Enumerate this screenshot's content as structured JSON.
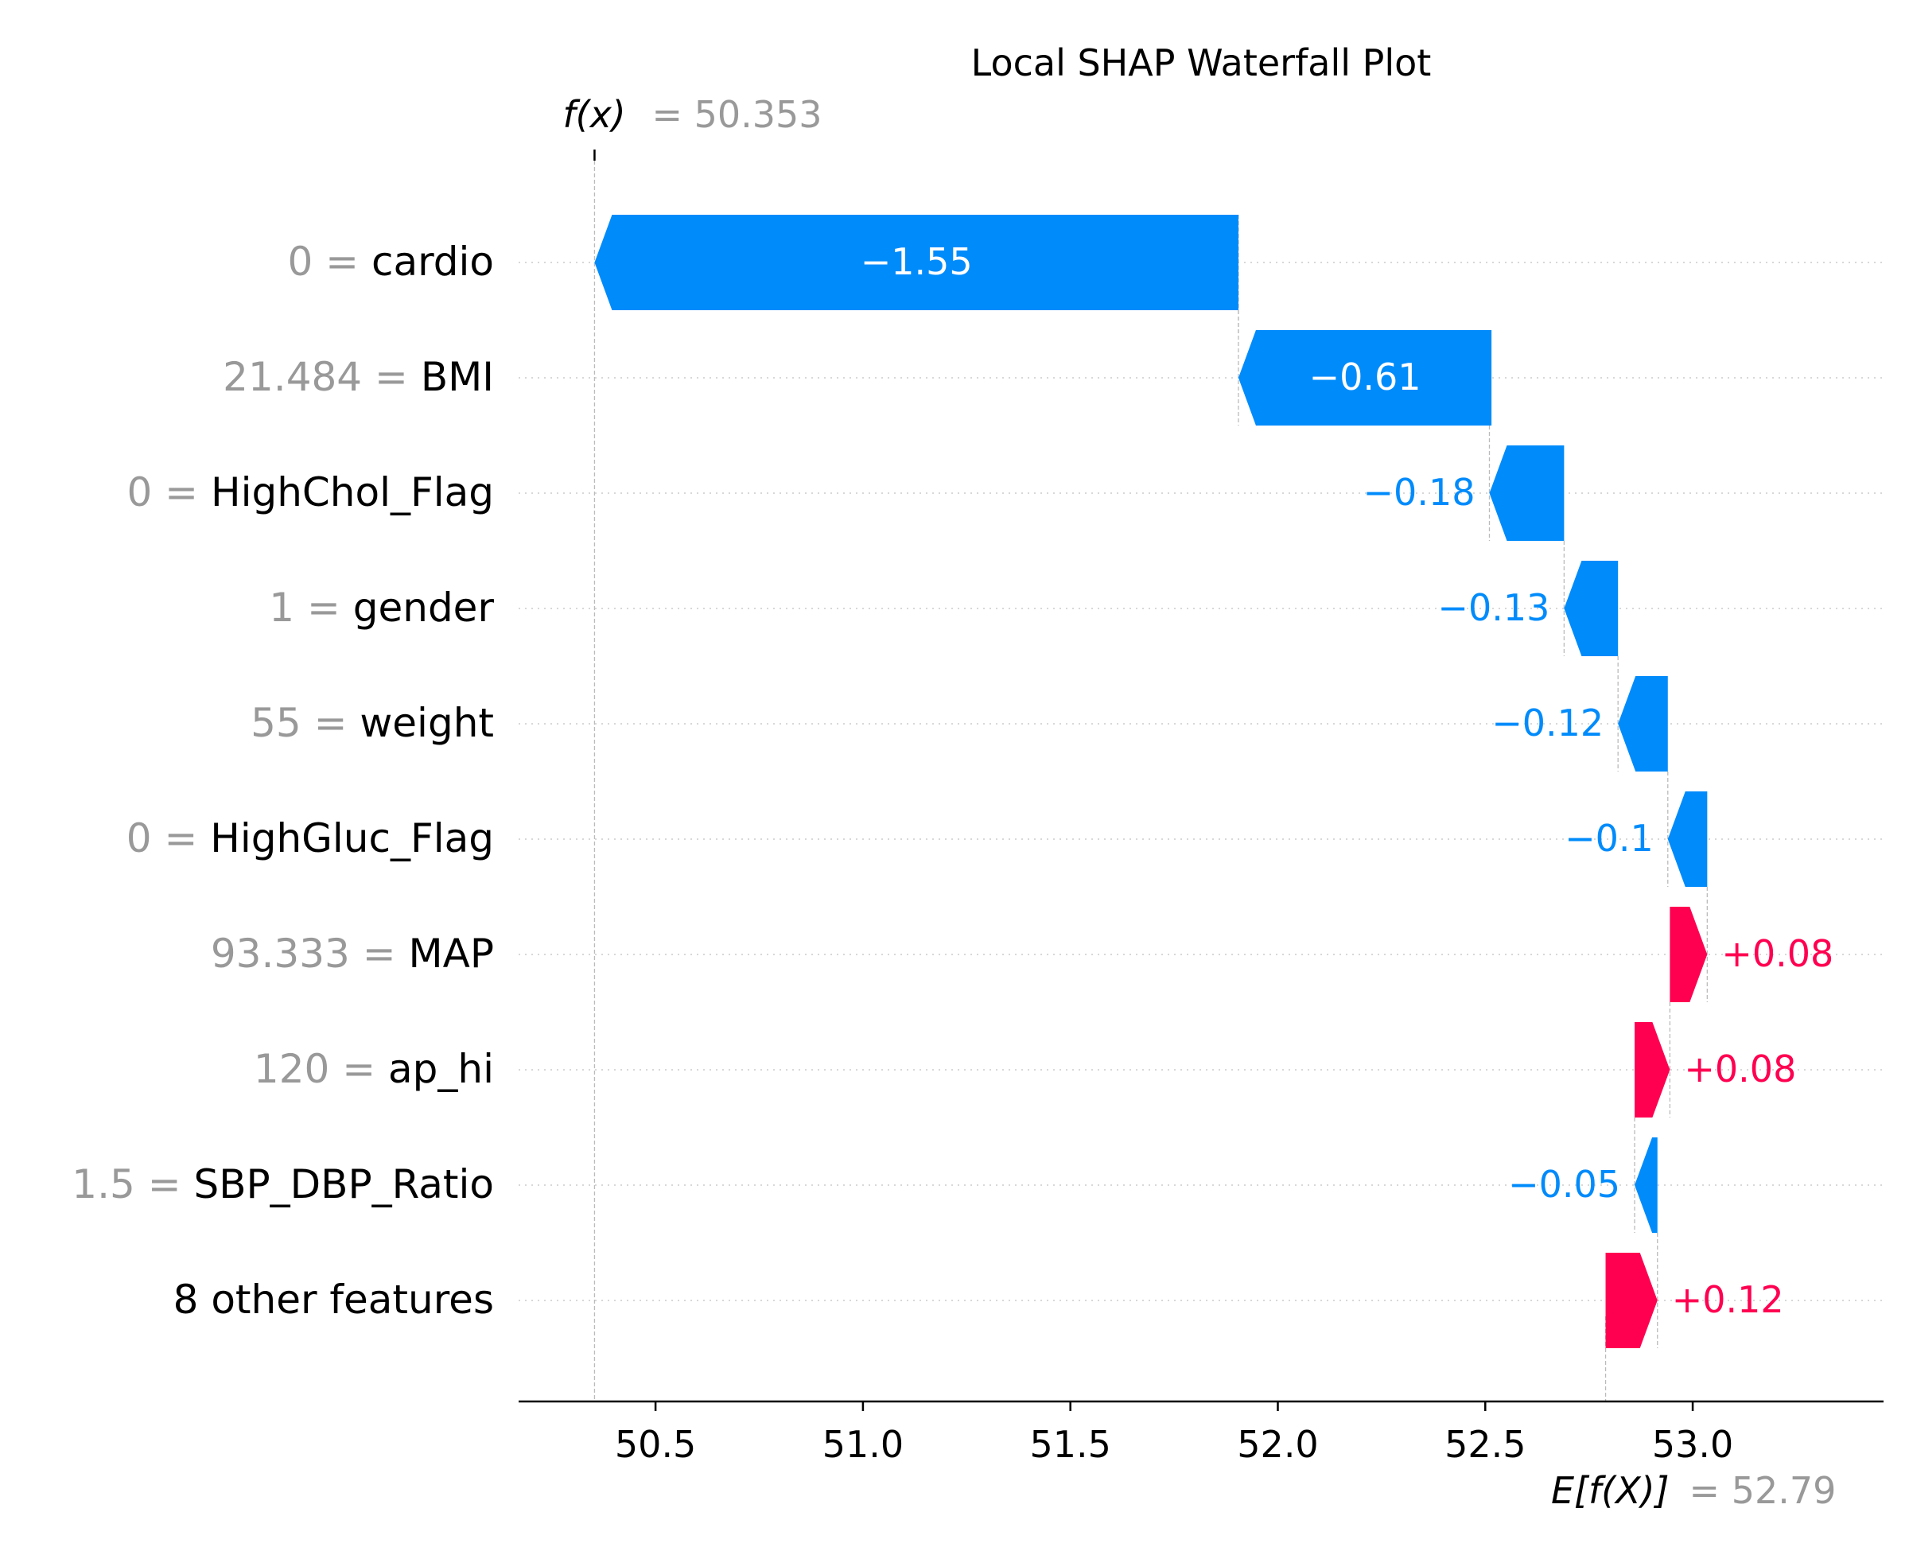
{
  "chart_data": {
    "type": "waterfall",
    "title": "Local SHAP Waterfall Plot",
    "fx": {
      "label_prefix": "f(x)",
      "value": 50.353,
      "value_text": "= 50.353"
    },
    "base": {
      "label_prefix": "E[f(X)]",
      "value": 52.79,
      "value_text": "= 52.79"
    },
    "xlim": [
      50.17,
      53.46
    ],
    "xticks": [
      50.5,
      51.0,
      51.5,
      52.0,
      52.5,
      53.0
    ],
    "xtick_labels": [
      "50.5",
      "51.0",
      "51.5",
      "52.0",
      "52.5",
      "53.0"
    ],
    "grid": "dotted-horizontal",
    "colors": {
      "negative": "#008bfb",
      "positive": "#ff0051",
      "feature_value": "#999999",
      "feature_name": "#000000"
    },
    "features": [
      {
        "value_text": "0",
        "name": "cardio",
        "shap": -1.55,
        "label": "−1.55",
        "start": 51.905,
        "end": 50.353
      },
      {
        "value_text": "21.484",
        "name": "BMI",
        "shap": -0.61,
        "label": "−0.61",
        "start": 52.515,
        "end": 51.905
      },
      {
        "value_text": "0",
        "name": "HighChol_Flag",
        "shap": -0.18,
        "label": "−0.18",
        "start": 52.69,
        "end": 52.51
      },
      {
        "value_text": "1",
        "name": "gender",
        "shap": -0.13,
        "label": "−0.13",
        "start": 52.82,
        "end": 52.69
      },
      {
        "value_text": "55",
        "name": "weight",
        "shap": -0.12,
        "label": "−0.12",
        "start": 52.94,
        "end": 52.82
      },
      {
        "value_text": "0",
        "name": "HighGluc_Flag",
        "shap": -0.1,
        "label": "−0.1",
        "start": 53.035,
        "end": 52.94
      },
      {
        "value_text": "93.333",
        "name": "MAP",
        "shap": 0.08,
        "label": "+0.08",
        "start": 52.945,
        "end": 53.035
      },
      {
        "value_text": "120",
        "name": "ap_hi",
        "shap": 0.08,
        "label": "+0.08",
        "start": 52.86,
        "end": 52.945
      },
      {
        "value_text": "1.5",
        "name": "SBP_DBP_Ratio",
        "shap": -0.05,
        "label": "−0.05",
        "start": 52.915,
        "end": 52.86
      },
      {
        "value_text": "",
        "name": "8 other features",
        "shap": 0.12,
        "label": "+0.12",
        "start": 52.79,
        "end": 52.915
      }
    ]
  }
}
